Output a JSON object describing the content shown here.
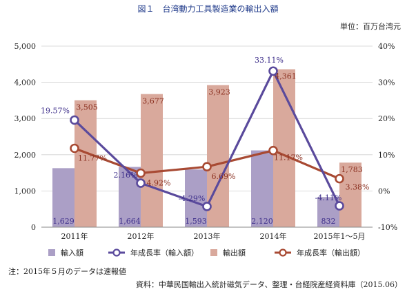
{
  "header": {
    "title": "図１　台湾動力工具製造業の輸出入額",
    "unit": "単位：百万台湾元"
  },
  "footer": {
    "note": "注：2015年５月のデータは速報値",
    "source": "資料：中華民国輸出入統計磁気データ、整理・台経院産経資料庫（2015.06）"
  },
  "colors": {
    "import_bar": "#ab9fc6",
    "export_bar": "#d9a99c",
    "import_line": "#5a4a9c",
    "export_line": "#a84a33",
    "import_label": "#3d2e8a",
    "export_label": "#8a2f1f"
  },
  "chart_data": {
    "type": "bar",
    "categories": [
      "2011年",
      "2012年",
      "2013年",
      "2014年",
      "2015年1～5月"
    ],
    "y_left": {
      "ticks": [
        "0",
        "1,000",
        "2,000",
        "3,000",
        "4,000",
        "5,000"
      ],
      "ylim": [
        0,
        5000
      ]
    },
    "y_right": {
      "ticks": [
        "-10%",
        "0%",
        "10%",
        "20%",
        "30%",
        "40%"
      ],
      "ylim": [
        -10,
        40
      ]
    },
    "series": [
      {
        "name": "輸入額",
        "kind": "bar",
        "axis": "left",
        "values": [
          1629,
          1664,
          1593,
          2120,
          832
        ],
        "labels": [
          "1,629",
          "1,664",
          "1,593",
          "2,120",
          "832"
        ]
      },
      {
        "name": "輸出額",
        "kind": "bar",
        "axis": "left",
        "values": [
          3505,
          3677,
          3923,
          4361,
          1783
        ],
        "labels": [
          "3,505",
          "3,677",
          "3,923",
          "4,361",
          "1,783"
        ]
      },
      {
        "name": "年成長率（輸入額）",
        "kind": "line",
        "axis": "right",
        "values": [
          19.57,
          2.16,
          -4.29,
          33.11,
          -4.11
        ],
        "labels": [
          "19.57%",
          "2.16%",
          "-4.29%",
          "33.11%",
          "-4.11%"
        ]
      },
      {
        "name": "年成長率（輸出額）",
        "kind": "line",
        "axis": "right",
        "values": [
          11.77,
          4.92,
          6.69,
          11.17,
          3.38
        ],
        "labels": [
          "11.77%",
          "4.92%",
          "6.69%",
          "11.17%",
          "3.38%"
        ]
      }
    ],
    "grid": true,
    "legend": "bottom"
  }
}
